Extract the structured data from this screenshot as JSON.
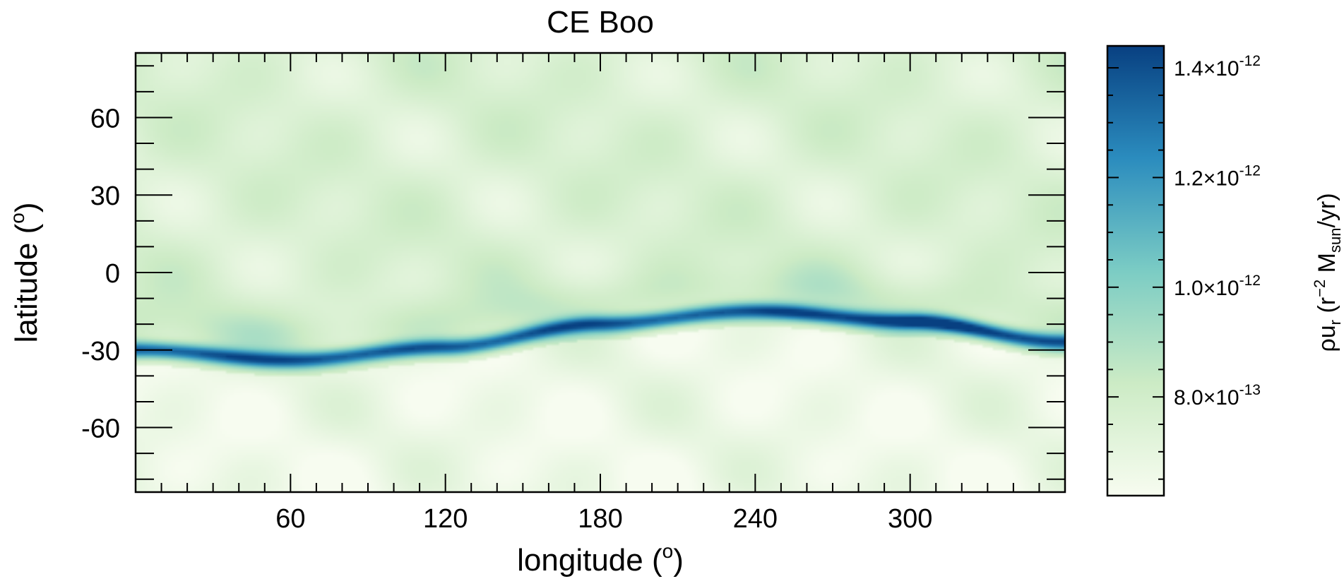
{
  "chart_data": {
    "type": "heatmap",
    "title": "CE Boo",
    "xlabel": "longitude (",
    "xlabel_sup": "o",
    "xlabel_close": ")",
    "ylabel": "latitude (",
    "ylabel_sup": "o",
    "ylabel_close": ")",
    "xlim": [
      0,
      360
    ],
    "ylim": [
      -85,
      85
    ],
    "xticks": [
      60,
      120,
      180,
      240,
      300
    ],
    "xtick_labels": [
      "60",
      "120",
      "180",
      "240",
      "300"
    ],
    "yticks": [
      60,
      30,
      0,
      -30,
      -60
    ],
    "ytick_labels": [
      "60",
      "30",
      "0",
      "-30",
      "-60"
    ],
    "colormap": [
      "#f7fcf0",
      "#ccebc5",
      "#7bccc4",
      "#2b8cbe",
      "#084081"
    ],
    "colorbar": {
      "label_prefix": "ρu",
      "label_sub": "r",
      "label_mid": "  (r",
      "label_sup": "−2",
      "label_mid2": " M",
      "label_sub2": "sun",
      "label_end": "/yr)",
      "range": [
        6.2e-13,
        1.44e-12
      ],
      "ticks": [
        {
          "value": 8e-13,
          "mantissa": "8.0×10",
          "exponent": "-13"
        },
        {
          "value": 1e-12,
          "mantissa": "1.0×10",
          "exponent": "-12"
        },
        {
          "value": 1.2e-12,
          "mantissa": "1.2×10",
          "exponent": "-12"
        },
        {
          "value": 1.4e-12,
          "mantissa": "1.4×10",
          "exponent": "-12"
        }
      ]
    },
    "band_center_lat": [
      {
        "lon": 0,
        "lat": -30
      },
      {
        "lon": 60,
        "lat": -34
      },
      {
        "lon": 120,
        "lat": -29
      },
      {
        "lon": 180,
        "lat": -20
      },
      {
        "lon": 240,
        "lat": -15
      },
      {
        "lon": 300,
        "lat": -19
      },
      {
        "lon": 360,
        "lat": -27
      }
    ],
    "band_peak_value": 1.44e-12,
    "background_value": 7.6e-13
  }
}
